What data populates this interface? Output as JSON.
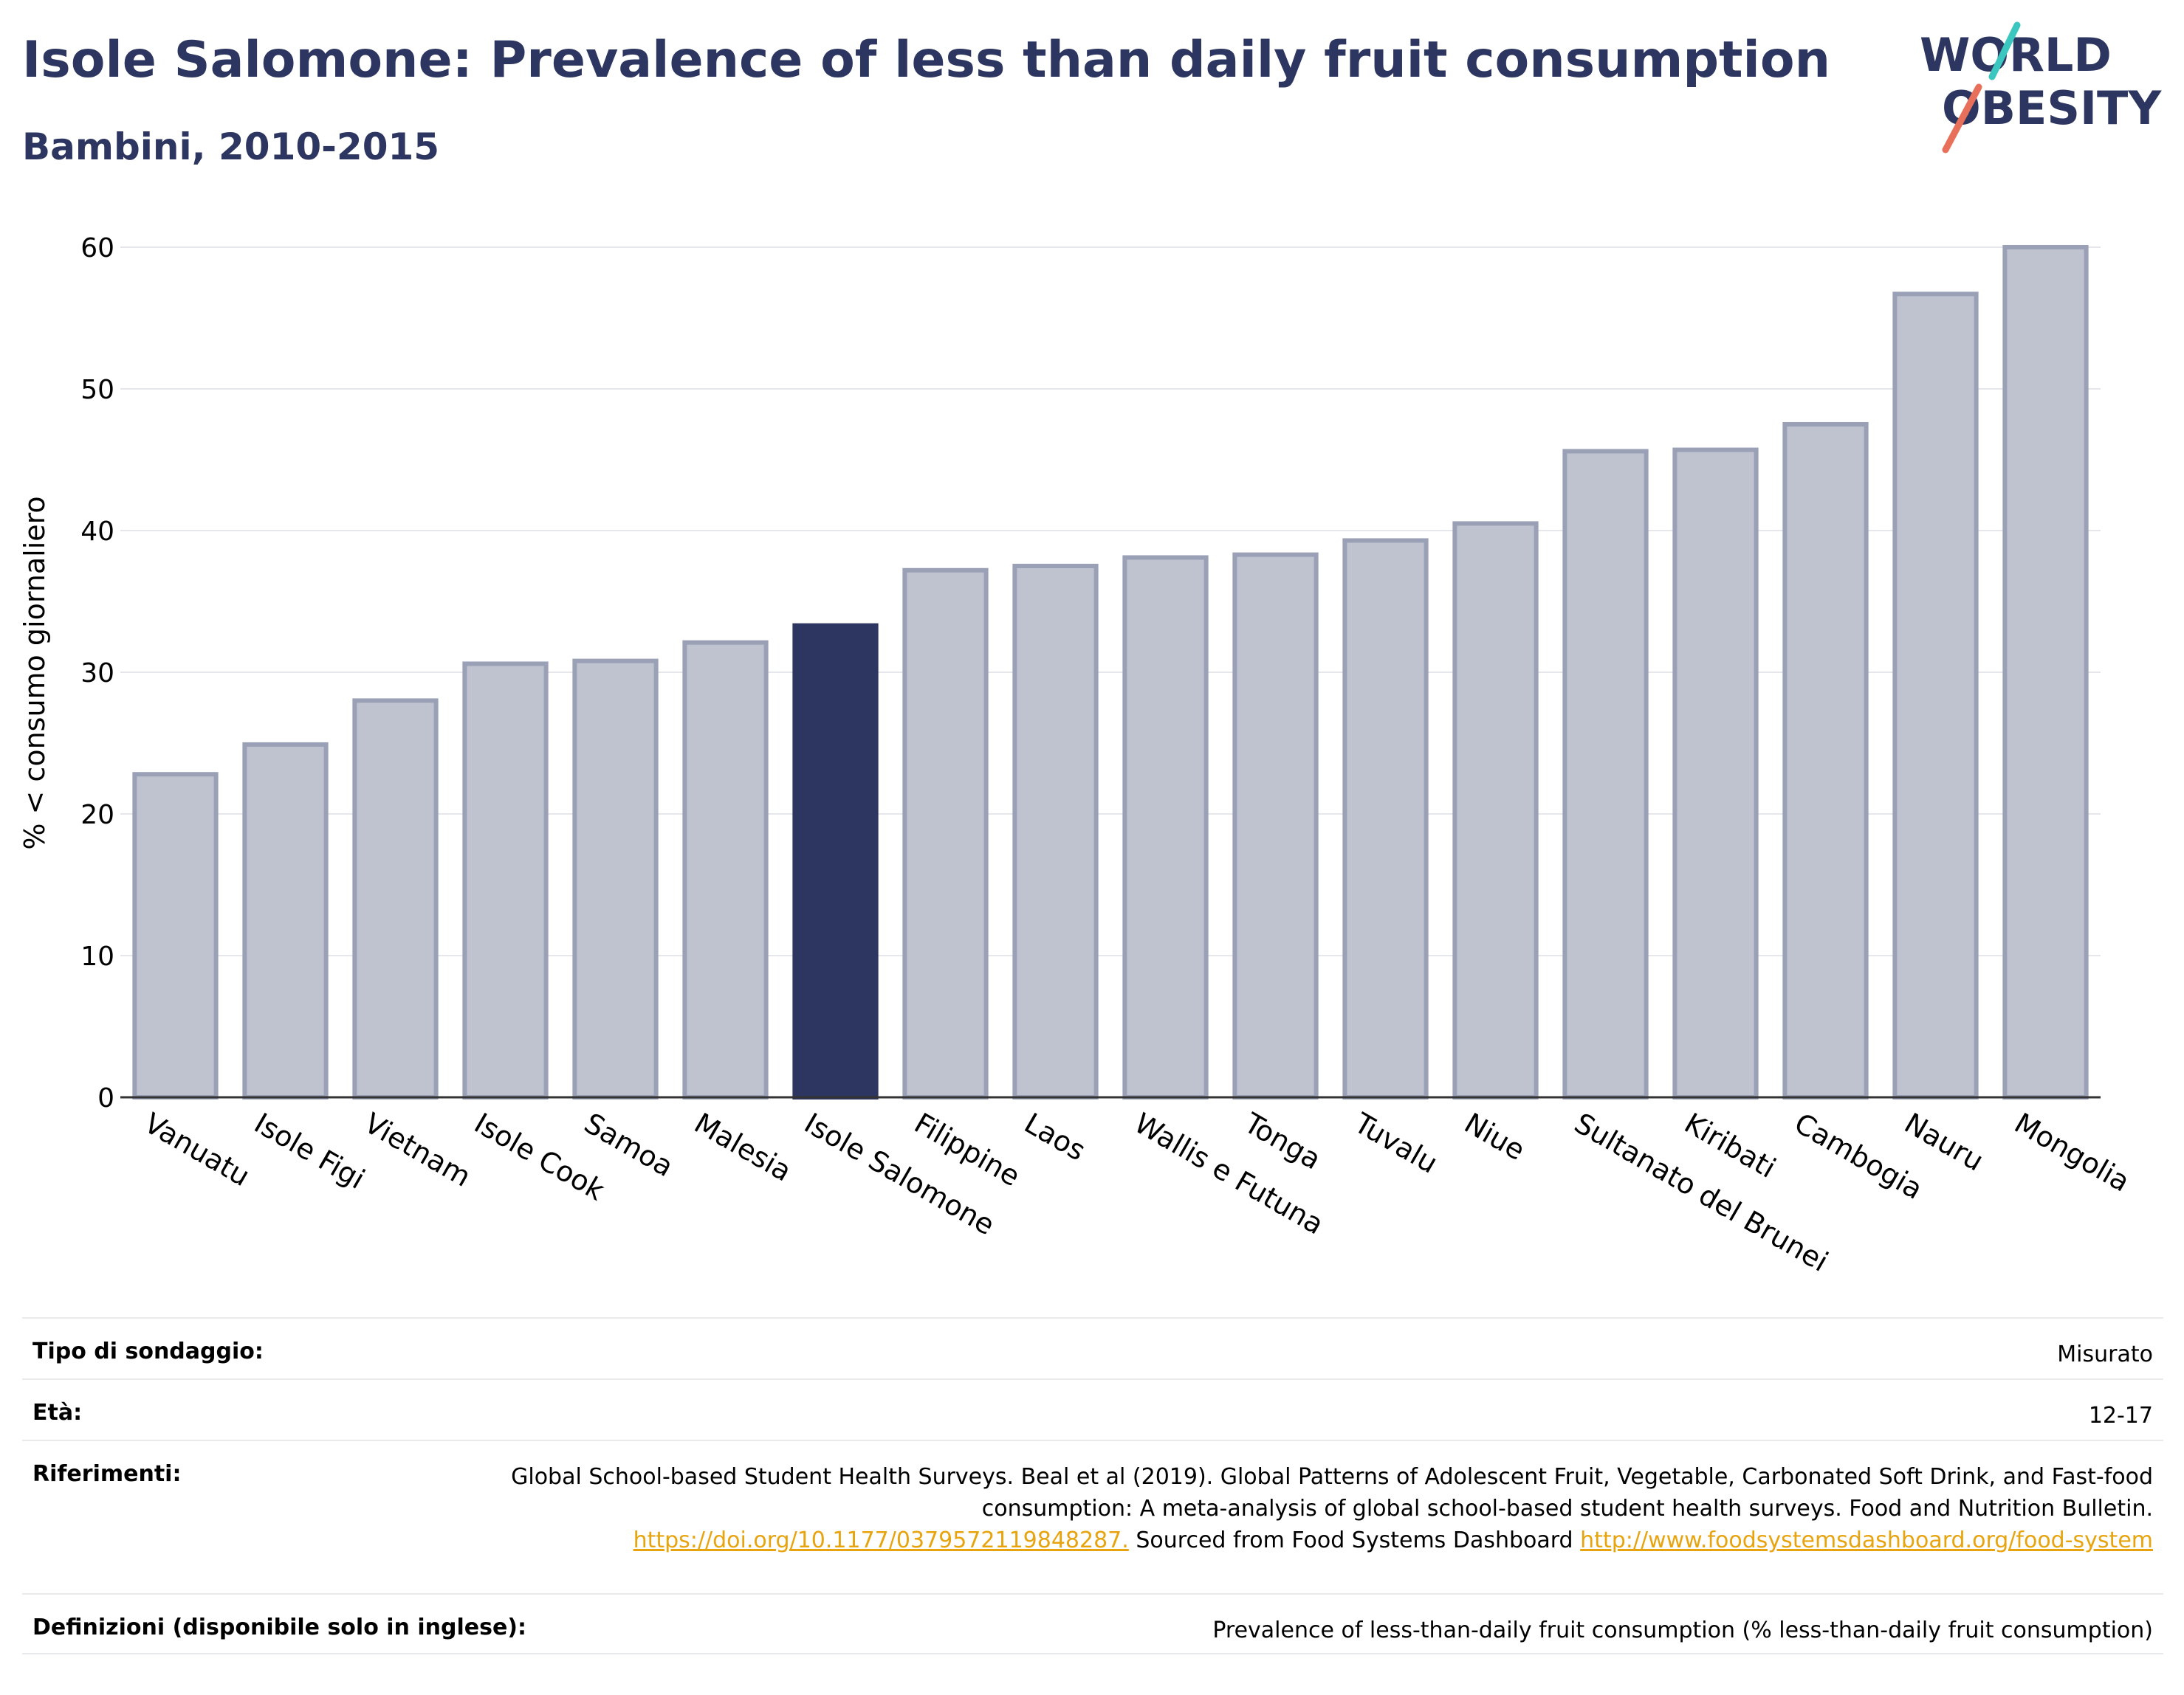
{
  "header": {
    "title": "Isole Salomone: Prevalence of less than daily fruit consumption",
    "subtitle": "Bambini, 2010-2015"
  },
  "logo": {
    "line1": "WORLD",
    "line2": "OBESITY",
    "accent_colors": [
      "#3cc6c0",
      "#e8705a"
    ]
  },
  "colors": {
    "highlight_bar": "#2d3660",
    "other_bar": "#bfc2cf",
    "other_bar_edge": "#9aa0b6",
    "text_primary": "#2d3660",
    "link": "#e7a40e"
  },
  "chart_data": {
    "type": "bar",
    "ylabel": "% < consumo giornaliero",
    "xlabel": "",
    "ylim": [
      0,
      60
    ],
    "yticks": [
      0,
      10,
      20,
      30,
      40,
      50,
      60
    ],
    "grid": true,
    "highlight": "Isole Salomone",
    "categories": [
      "Vanuatu",
      "Isole Figi",
      "Vietnam",
      "Isole Cook",
      "Samoa",
      "Malesia",
      "Isole Salomone",
      "Filippine",
      "Laos",
      "Wallis e Futuna",
      "Tonga",
      "Tuvalu",
      "Niue",
      "Sultanato del Brunei",
      "Kiribati",
      "Cambogia",
      "Nauru",
      "Mongolia"
    ],
    "values": [
      22.8,
      24.9,
      28.0,
      30.6,
      30.8,
      32.1,
      33.3,
      37.2,
      37.5,
      38.1,
      38.3,
      39.3,
      40.5,
      45.6,
      45.7,
      47.5,
      56.7,
      60.0
    ]
  },
  "info": {
    "survey_type_label": "Tipo di sondaggio:",
    "survey_type_value": "Misurato",
    "age_label": "Età:",
    "age_value": "12-17",
    "references_label": "Riferimenti:",
    "references_text_1": "Global School-based Student Health Surveys. Beal et al (2019). Global Patterns of Adolescent Fruit, Vegetable, Carbonated Soft Drink, and Fast-food consumption: A meta-analysis of global school-based student health surveys. Food and Nutrition Bulletin.",
    "references_link_1": "https://doi.org/10.1177/0379572119848287.",
    "references_text_2": "Sourced from Food Systems Dashboard",
    "references_link_2": "http://www.foodsystemsdashboard.org/food-system",
    "definitions_label": "Definizioni (disponibile solo in inglese):",
    "definitions_value": "Prevalence of less-than-daily fruit consumption (% less-than-daily fruit consumption)"
  }
}
